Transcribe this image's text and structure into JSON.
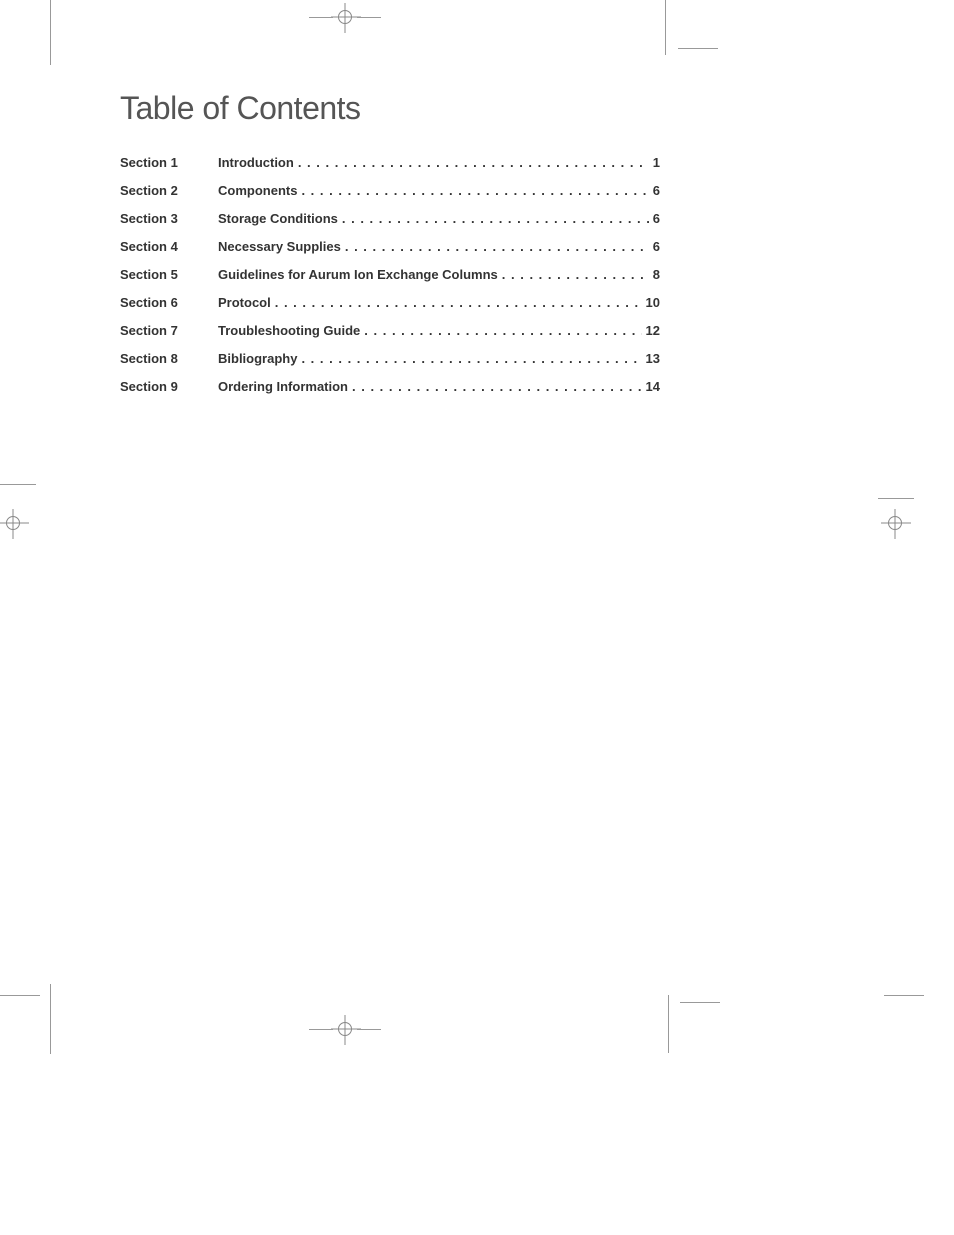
{
  "title": "Table of Contents",
  "colors": {
    "title_color": "#555555",
    "text_color": "#333333",
    "background": "#ffffff",
    "crop_mark": "#999999"
  },
  "typography": {
    "title_fontsize": 32,
    "title_fontweight": 300,
    "row_fontsize": 13,
    "row_fontweight": "bold"
  },
  "toc": [
    {
      "section": "Section 1",
      "label": "Introduction",
      "page": "1"
    },
    {
      "section": "Section 2",
      "label": "Components",
      "page": "6"
    },
    {
      "section": "Section 3",
      "label": "Storage Conditions",
      "page": "6"
    },
    {
      "section": "Section 4",
      "label": "Necessary Supplies",
      "page": "6"
    },
    {
      "section": "Section 5",
      "label": "Guidelines for Aurum Ion Exchange Columns",
      "page": "8"
    },
    {
      "section": "Section 6",
      "label": "Protocol",
      "page": "10"
    },
    {
      "section": "Section 7",
      "label": "Troubleshooting Guide",
      "page": "12"
    },
    {
      "section": "Section 8",
      "label": "Bibliography",
      "page": "13"
    },
    {
      "section": "Section 9",
      "label": "Ordering Information",
      "page": "14"
    }
  ]
}
